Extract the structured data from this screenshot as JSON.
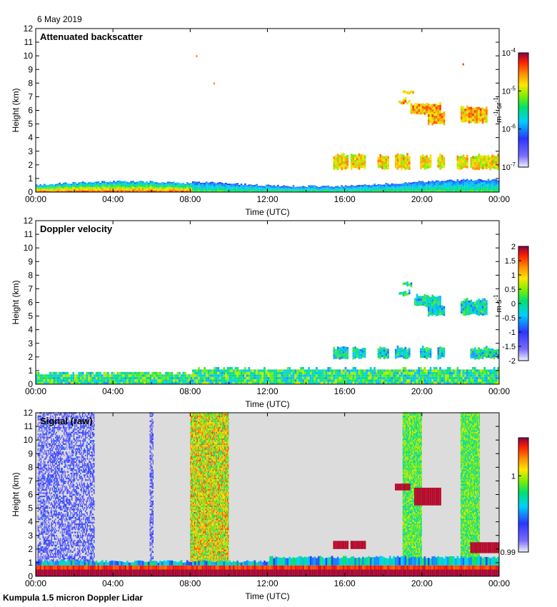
{
  "date": "6 May 2019",
  "footer": "Kumpula 1.5 micron Doppler Lidar",
  "chart_data": [
    {
      "type": "heatmap",
      "title": "Attenuated backscatter",
      "xlabel": "Time (UTC)",
      "ylabel": "Height (km)",
      "x_ticks": [
        "00:00",
        "04:00",
        "08:00",
        "12:00",
        "16:00",
        "20:00",
        "00:00"
      ],
      "x_range_hours": [
        0,
        24
      ],
      "y_ticks": [
        "0",
        "1",
        "2",
        "3",
        "4",
        "5",
        "6",
        "7",
        "8",
        "9",
        "10",
        "11",
        "12"
      ],
      "ylim": [
        0,
        12
      ],
      "colorbar": {
        "scale": "log",
        "range": [
          1e-07,
          0.0001
        ],
        "ticks": [
          {
            "base": "10",
            "exp": "-4"
          },
          {
            "base": "10",
            "exp": "-5"
          },
          {
            "base": "10",
            "exp": "-6"
          },
          {
            "base": "10",
            "exp": "-7"
          }
        ],
        "label_parts": [
          "m",
          "-1",
          " sr",
          "-1"
        ]
      },
      "features": [
        {
          "name": "boundary layer",
          "t": [
            0,
            24
          ],
          "h": [
            0,
            0.8
          ]
        },
        {
          "name": "cloud layer 2 km",
          "t": [
            15.4,
            24
          ],
          "h": [
            1.5,
            2.7
          ]
        },
        {
          "name": "mid-level clouds",
          "t": [
            18.8,
            23.4
          ],
          "h": [
            5,
            7.5
          ]
        }
      ]
    },
    {
      "type": "heatmap",
      "title": "Doppler velocity",
      "xlabel": "Time (UTC)",
      "ylabel": "Height (km)",
      "x_ticks": [
        "00:00",
        "04:00",
        "08:00",
        "12:00",
        "16:00",
        "20:00",
        "00:00"
      ],
      "x_range_hours": [
        0,
        24
      ],
      "y_ticks": [
        "0",
        "1",
        "2",
        "3",
        "4",
        "5",
        "6",
        "7",
        "8",
        "9",
        "10",
        "11",
        "12"
      ],
      "ylim": [
        0,
        12
      ],
      "colorbar": {
        "scale": "linear",
        "range": [
          -2,
          2
        ],
        "ticks": [
          "2",
          "1.5",
          "1",
          "0.5",
          "0",
          "-0.5",
          "-1",
          "-1.5",
          "-2"
        ],
        "label_parts": [
          "m s",
          "-1"
        ]
      },
      "features": [
        {
          "name": "boundary layer",
          "t": [
            0,
            24
          ],
          "h": [
            0,
            1
          ]
        },
        {
          "name": "cloud layer 2 km",
          "t": [
            15.4,
            24
          ],
          "h": [
            1.8,
            2.7
          ]
        },
        {
          "name": "mid-level clouds",
          "t": [
            18.8,
            23.4
          ],
          "h": [
            5,
            7.5
          ]
        }
      ]
    },
    {
      "type": "heatmap",
      "title": "Signal (raw)",
      "xlabel": "Time (UTC)",
      "ylabel": "Height (km)",
      "x_ticks": [
        "00:00",
        "04:00",
        "08:00",
        "12:00",
        "16:00",
        "20:00",
        "00:00"
      ],
      "x_range_hours": [
        0,
        24
      ],
      "y_ticks": [
        "0",
        "1",
        "2",
        "3",
        "4",
        "5",
        "6",
        "7",
        "8",
        "9",
        "10",
        "11",
        "12"
      ],
      "ylim": [
        0,
        12
      ],
      "colorbar": {
        "scale": "linear",
        "range": [
          0.99,
          1.005
        ],
        "ticks": [
          "1",
          "0.99"
        ],
        "label_parts": []
      },
      "features": [
        {
          "name": "noise columns",
          "t": [
            0,
            3
          ],
          "h": [
            0,
            12
          ]
        },
        {
          "name": "high-noise band",
          "t": [
            8,
            10
          ],
          "h": [
            0,
            12
          ]
        },
        {
          "name": "high-noise band",
          "t": [
            19,
            20
          ],
          "h": [
            0,
            12
          ]
        },
        {
          "name": "high-noise band",
          "t": [
            22,
            23
          ],
          "h": [
            0,
            12
          ]
        }
      ]
    }
  ]
}
